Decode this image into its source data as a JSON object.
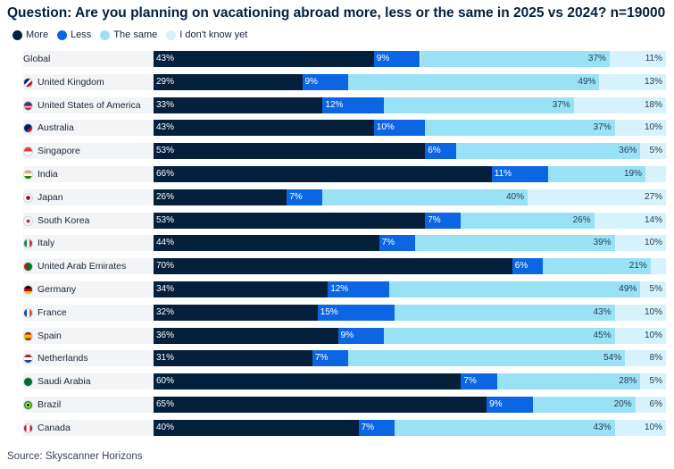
{
  "title": "Question: Are you planning on vacationing abroad more, less or the same in 2025 vs 2024? n=19000",
  "source": "Source: Skyscanner Horizons",
  "colors": {
    "more": "#05203c",
    "less": "#0c66e4",
    "same": "#99e2f6",
    "unknown": "#d6f3fb"
  },
  "legend": [
    {
      "label": "More",
      "key": "more"
    },
    {
      "label": "Less",
      "key": "less"
    },
    {
      "label": "The same",
      "key": "same"
    },
    {
      "label": "I don't know yet",
      "key": "unknown"
    }
  ],
  "chart_data": {
    "type": "bar",
    "orientation": "horizontal",
    "stacked": true,
    "title": "Question: Are you planning on vacationing abroad more, less or the same in 2025 vs 2024? n=19000",
    "xlim": [
      0,
      100
    ],
    "categories": [
      "Global",
      "United Kingdom",
      "United States of America",
      "Australia",
      "Singapore",
      "India",
      "Japan",
      "South Korea",
      "Italy",
      "United Arab Emirates",
      "Germany",
      "France",
      "Spain",
      "Netherlands",
      "Saudi Arabia",
      "Brazil",
      "Canada"
    ],
    "flag_icons": [
      "",
      "uk-flag-icon",
      "usa-flag-icon",
      "australia-flag-icon",
      "singapore-flag-icon",
      "india-flag-icon",
      "japan-flag-icon",
      "south-korea-flag-icon",
      "italy-flag-icon",
      "uae-flag-icon",
      "germany-flag-icon",
      "france-flag-icon",
      "spain-flag-icon",
      "netherlands-flag-icon",
      "saudi-arabia-flag-icon",
      "brazil-flag-icon",
      "canada-flag-icon"
    ],
    "series": [
      {
        "name": "More",
        "values": [
          43,
          29,
          33,
          43,
          53,
          66,
          26,
          53,
          44,
          70,
          34,
          32,
          36,
          31,
          60,
          65,
          40
        ]
      },
      {
        "name": "Less",
        "values": [
          9,
          9,
          12,
          10,
          6,
          11,
          7,
          7,
          7,
          6,
          12,
          15,
          9,
          7,
          7,
          9,
          7
        ]
      },
      {
        "name": "The same",
        "values": [
          37,
          49,
          37,
          37,
          36,
          19,
          40,
          26,
          39,
          21,
          49,
          43,
          45,
          54,
          28,
          20,
          43
        ]
      },
      {
        "name": "I don't know yet",
        "values": [
          11,
          13,
          18,
          10,
          5,
          4,
          27,
          14,
          10,
          3,
          5,
          10,
          10,
          8,
          5,
          6,
          10
        ]
      }
    ],
    "displayed_labels": [
      [
        "43%",
        "9%",
        "37%",
        "11%"
      ],
      [
        "29%",
        "9%",
        "49%",
        "13%"
      ],
      [
        "33%",
        "12%",
        "37%",
        "18%"
      ],
      [
        "43%",
        "10%",
        "37%",
        "10%"
      ],
      [
        "53%",
        "6%",
        "36%",
        "5%"
      ],
      [
        "66%",
        "11%",
        "19%",
        ""
      ],
      [
        "26%",
        "7%",
        "40%",
        "27%"
      ],
      [
        "53%",
        "7%",
        "26%",
        "14%"
      ],
      [
        "44%",
        "7%",
        "39%",
        "10%"
      ],
      [
        "70%",
        "6%",
        "21%",
        ""
      ],
      [
        "34%",
        "12%",
        "49%",
        "5%"
      ],
      [
        "32%",
        "15%",
        "43%",
        "10%"
      ],
      [
        "36%",
        "9%",
        "45%",
        "10%"
      ],
      [
        "31%",
        "7%",
        "54%",
        "8%"
      ],
      [
        "60%",
        "7%",
        "28%",
        "5%"
      ],
      [
        "65%",
        "9%",
        "20%",
        "6%"
      ],
      [
        "40%",
        "7%",
        "43%",
        "10%"
      ]
    ]
  }
}
